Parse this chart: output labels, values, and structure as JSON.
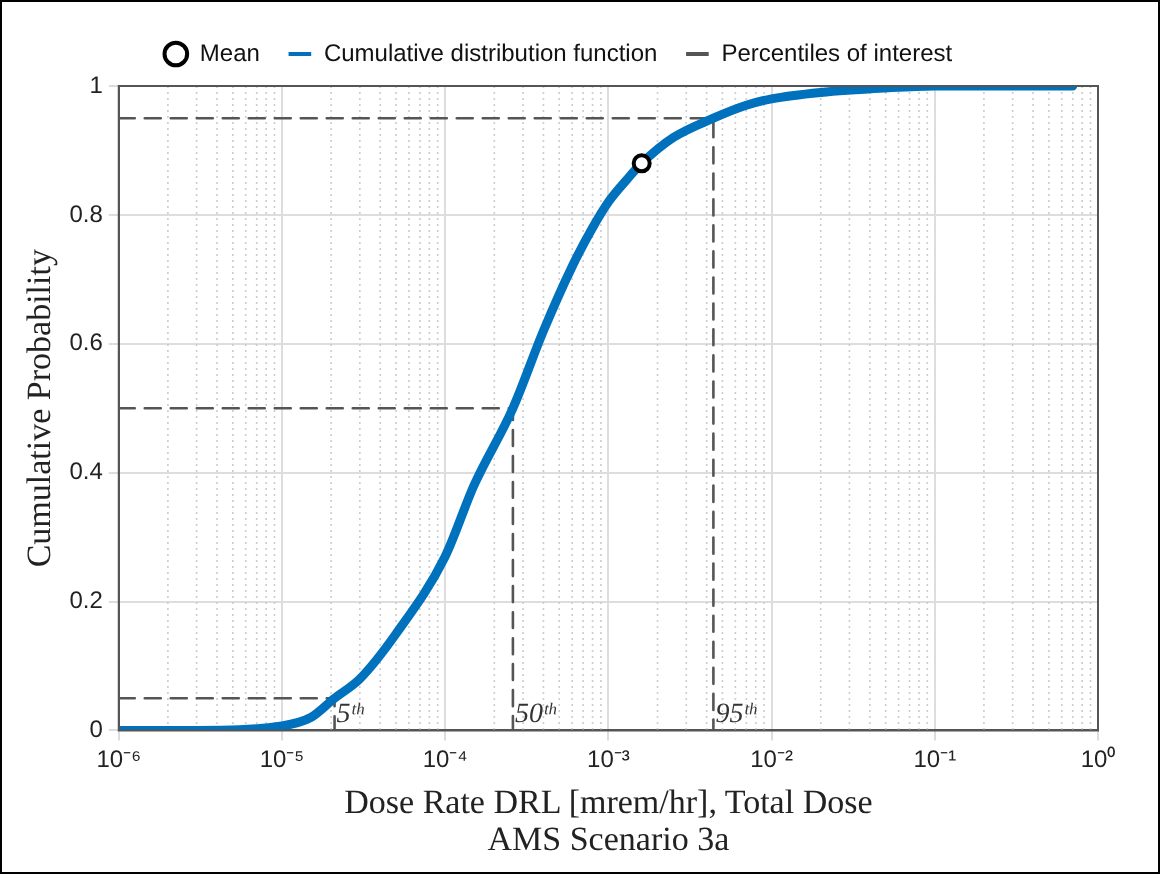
{
  "chart_data": {
    "type": "line",
    "xlabel": "Dose Rate DRL [mrem/hr], Total Dose\nAMS Scenario 3a",
    "ylabel": "Cumulative Probability",
    "log": "x",
    "xlim": [
      1e-06,
      1
    ],
    "xticks": [
      {
        "value": 1e-06,
        "label": "10⁻⁶"
      },
      {
        "value": 1e-05,
        "label": "10⁻⁵"
      },
      {
        "value": 0.0001,
        "label": "10⁻⁴"
      },
      {
        "value": 0.001,
        "label": "10⁻³"
      },
      {
        "value": 0.01,
        "label": "10⁻²"
      },
      {
        "value": 0.1,
        "label": "10⁻¹"
      },
      {
        "value": 1,
        "label": "10⁰"
      }
    ],
    "ylim": [
      0,
      1
    ],
    "yticks": [
      0,
      0.2,
      0.4,
      0.6,
      0.8,
      1
    ],
    "grid": true,
    "legend": "top",
    "series": [
      {
        "name": "Cumulative distribution function",
        "line_style": "solid",
        "marker": "none",
        "color": "#0072bd",
        "x": [
          1e-06,
          3e-06,
          1e-05,
          1.5e-05,
          2.1e-05,
          3e-05,
          5e-05,
          0.0001,
          0.00015,
          0.00026,
          0.0004,
          0.0006,
          0.0008,
          0.001,
          0.0013,
          0.0016,
          0.0025,
          0.0044,
          0.007,
          0.01,
          0.02,
          0.05,
          0.1,
          0.7
        ],
        "values": [
          0,
          0,
          0.007,
          0.02,
          0.05,
          0.08,
          0.15,
          0.27,
          0.38,
          0.5,
          0.62,
          0.72,
          0.78,
          0.82,
          0.855,
          0.88,
          0.92,
          0.95,
          0.97,
          0.98,
          0.99,
          0.997,
          1,
          1
        ]
      },
      {
        "name": "Percentiles of interest",
        "line_style": "dashed",
        "marker": "none",
        "color": "#555555",
        "x": [
          1e-06,
          2.1e-05,
          2.1e-05
        ],
        "values": [
          0.05,
          0.05,
          0
        ]
      },
      {
        "line_style": "dashed",
        "marker": "none",
        "color": "#555555",
        "x": [
          1e-06,
          0.00026,
          0.00026
        ],
        "values": [
          0.5,
          0.5,
          0
        ]
      },
      {
        "line_style": "dashed",
        "marker": "none",
        "color": "#555555",
        "x": [
          1e-06,
          0.0044,
          0.0044
        ],
        "values": [
          0.95,
          0.95,
          0
        ]
      },
      {
        "name": "Mean",
        "type": "scatter",
        "marker": "circle",
        "color": "#000000",
        "x": [
          0.0016
        ],
        "values": [
          0.88
        ]
      }
    ],
    "annotations": [
      {
        "text": "5ᵗʰ",
        "x": 2.1e-05,
        "y": 0
      },
      {
        "text": "50ᵗʰ",
        "x": 0.00026,
        "y": 0
      },
      {
        "text": "95ᵗʰ",
        "x": 0.0044,
        "y": 0
      }
    ]
  }
}
